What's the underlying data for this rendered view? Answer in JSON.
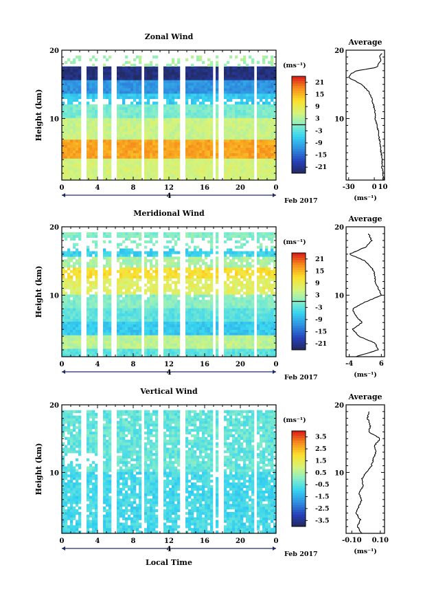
{
  "figure": {
    "date_label": "Feb 2017",
    "xlabel": "Local Time",
    "day_label": "4"
  },
  "chart_data": [
    {
      "type": "heatmap",
      "title": "Zonal Wind",
      "ylabel": "Height (km)",
      "xlabel": "Local Time",
      "x_ticks": [
        "0",
        "4",
        "8",
        "12",
        "16",
        "20",
        "0"
      ],
      "y_ticks": [
        "20",
        "10"
      ],
      "xlim": [
        0,
        24
      ],
      "ylim": [
        1,
        20
      ],
      "colorbar": {
        "unit": "(ms⁻¹)",
        "ticks": [
          "21",
          "15",
          "9",
          "3",
          "-3",
          "-9",
          "-15",
          "-21"
        ],
        "range": [
          -24,
          24
        ]
      },
      "data_gaps_hours": [
        [
          2.3,
          2.9
        ],
        [
          4.0,
          4.5
        ],
        [
          5.6,
          6.1
        ],
        [
          8.9,
          9.3
        ],
        [
          10.9,
          11.4
        ],
        [
          13.3,
          13.7
        ],
        [
          16.9,
          17.3
        ],
        [
          17.6,
          18.0
        ],
        [
          21.5,
          21.9
        ]
      ],
      "profile": {
        "title": "Average",
        "x_ticks": [
          "-30",
          "0",
          "10"
        ],
        "xlim": [
          -33,
          12
        ],
        "unit": "(ms⁻¹)",
        "heights": [
          1,
          2,
          3,
          4,
          5,
          6,
          7,
          8,
          9,
          10,
          11,
          12,
          13,
          14,
          15,
          16,
          16.5,
          17,
          17.5,
          18,
          18.5,
          19,
          19.5
        ],
        "values": [
          11,
          10,
          9,
          9,
          8,
          7,
          6,
          5,
          3,
          1,
          1,
          -1,
          -3,
          -7,
          -15,
          -30,
          -28,
          -20,
          3,
          5,
          8,
          6,
          9
        ]
      }
    },
    {
      "type": "heatmap",
      "title": "Meridional Wind",
      "ylabel": "Height (km)",
      "xlabel": "Local Time",
      "x_ticks": [
        "0",
        "4",
        "8",
        "12",
        "16",
        "20",
        "0"
      ],
      "y_ticks": [
        "20",
        "10"
      ],
      "xlim": [
        0,
        24
      ],
      "ylim": [
        1,
        20
      ],
      "colorbar": {
        "unit": "(ms⁻¹)",
        "ticks": [
          "21",
          "15",
          "9",
          "3",
          "-3",
          "-9",
          "-15",
          "-21"
        ],
        "range": [
          -24,
          24
        ]
      },
      "data_gaps_hours": [
        [
          2.3,
          2.9
        ],
        [
          4.0,
          4.5
        ],
        [
          5.6,
          6.1
        ],
        [
          8.9,
          9.3
        ],
        [
          10.9,
          11.4
        ],
        [
          13.3,
          13.7
        ],
        [
          16.9,
          17.3
        ],
        [
          17.6,
          18.0
        ],
        [
          21.5,
          21.9
        ]
      ],
      "profile": {
        "title": "Average",
        "x_ticks": [
          "-4",
          "6"
        ],
        "xlim": [
          -5,
          7
        ],
        "unit": "(ms⁻¹)",
        "heights": [
          1,
          2,
          3,
          4,
          5,
          6,
          7,
          8,
          9,
          10,
          11,
          12,
          13,
          14,
          15,
          16,
          17,
          18,
          19
        ],
        "values": [
          -2,
          5,
          4,
          -1,
          -3,
          0,
          -2,
          -3,
          1,
          6,
          5,
          4,
          4,
          3,
          1,
          -4,
          1,
          3,
          2
        ]
      }
    },
    {
      "type": "heatmap",
      "title": "Vertical Wind",
      "ylabel": "Height (km)",
      "xlabel": "Local Time",
      "x_ticks": [
        "0",
        "4",
        "8",
        "12",
        "16",
        "20",
        "0"
      ],
      "y_ticks": [
        "20",
        "10"
      ],
      "xlim": [
        0,
        24
      ],
      "ylim": [
        1,
        20
      ],
      "colorbar": {
        "unit": "(ms⁻¹)",
        "ticks": [
          "3.5",
          "2.5",
          "1.5",
          "0.5",
          "-0.5",
          "-1.5",
          "-2.5",
          "-3.5"
        ],
        "range": [
          -4,
          4
        ]
      },
      "data_gaps_hours": [
        [
          2.3,
          2.9
        ],
        [
          4.0,
          4.5
        ],
        [
          5.6,
          6.1
        ],
        [
          8.9,
          9.3
        ],
        [
          10.9,
          11.4
        ],
        [
          13.3,
          13.7
        ],
        [
          16.9,
          17.3
        ],
        [
          17.6,
          18.0
        ],
        [
          21.5,
          21.9
        ]
      ],
      "profile": {
        "title": "Average",
        "x_ticks": [
          "-0.10",
          "0.10"
        ],
        "xlim": [
          -0.14,
          0.13
        ],
        "unit": "(ms⁻¹)",
        "heights": [
          1,
          2,
          3,
          4,
          5,
          6,
          7,
          8,
          9,
          10,
          11,
          12,
          13,
          14,
          15,
          16,
          17,
          18,
          19
        ],
        "values": [
          -0.03,
          -0.06,
          -0.04,
          -0.07,
          -0.05,
          -0.03,
          -0.05,
          -0.02,
          -0.03,
          0.0,
          0.04,
          0.05,
          0.07,
          0.06,
          0.1,
          0.02,
          0.03,
          0.01,
          0.02
        ]
      }
    }
  ]
}
